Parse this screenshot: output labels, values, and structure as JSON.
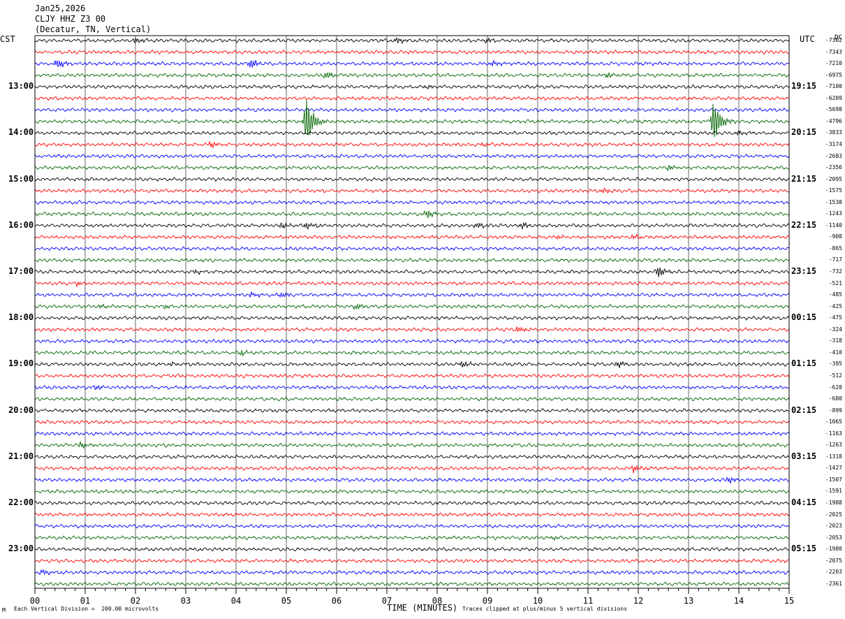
{
  "header": {
    "date": "Jan25,2026",
    "channel": "CLJY HHZ Z3 00",
    "location": "(Decatur, TN, Vertical)"
  },
  "left_zone": "CST",
  "right_zone": "UTC",
  "dc_header": "DC",
  "left_hour_labels": [
    "13:00",
    "14:00",
    "15:00",
    "16:00",
    "17:00",
    "18:00",
    "19:00",
    "20:00",
    "21:00",
    "22:00",
    "23:00"
  ],
  "right_hour_labels": [
    "19:15",
    "20:15",
    "21:15",
    "22:15",
    "23:15",
    "00:15",
    "01:15",
    "02:15",
    "03:15",
    "04:15",
    "05:15"
  ],
  "dc_offsets": [
    "-7302",
    "-7343",
    "-7210",
    "-6975",
    "-7100",
    "-6209",
    "-5698",
    "-4796",
    "-3833",
    "-3174",
    "-2683",
    "-2356",
    "-2095",
    "-1575",
    "-1538",
    "-1243",
    "-1140",
    "-908",
    "-865",
    "-717",
    "-732",
    "-521",
    "-485",
    "-425",
    "-475",
    "-324",
    "-318",
    "-410",
    "-395",
    "-512",
    "-628",
    "-680",
    "-899",
    "-1065",
    "-1163",
    "-1263",
    "-1318",
    "-1427",
    "-1507",
    "-1591",
    "-1988",
    "-2025",
    "-2023",
    "-2053",
    "-1980",
    "-2075",
    "-2203",
    "-2361"
  ],
  "footer": {
    "scale_note": "Each Vertical Division =  200.00 microvolts",
    "clip_note": "Traces clipped at plus/minus 5 vertical divisions",
    "corner_mark": "M"
  },
  "chart_data": {
    "type": "line",
    "title": "CLJY HHZ Z3 00",
    "xlabel": "TIME (MINUTES)",
    "x_ticks": [
      "00",
      "01",
      "02",
      "03",
      "04",
      "05",
      "06",
      "07",
      "08",
      "09",
      "10",
      "11",
      "12",
      "13",
      "14",
      "15"
    ],
    "xlim": [
      0,
      15
    ],
    "traces_per_hour": 4,
    "trace_count": 48,
    "trace_colors": [
      "#000000",
      "#ff0000",
      "#0000ff",
      "#006400"
    ],
    "grid": true,
    "events": [
      {
        "trace": 0,
        "minute": 2.0,
        "amplitude": 0.5
      },
      {
        "trace": 0,
        "minute": 7.2,
        "amplitude": 0.5
      },
      {
        "trace": 0,
        "minute": 9.0,
        "amplitude": 0.4
      },
      {
        "trace": 2,
        "minute": 0.45,
        "amplitude": 0.8
      },
      {
        "trace": 2,
        "minute": 4.3,
        "amplitude": 0.8
      },
      {
        "trace": 2,
        "minute": 9.1,
        "amplitude": 0.4
      },
      {
        "trace": 3,
        "minute": 5.8,
        "amplitude": 0.6
      },
      {
        "trace": 3,
        "minute": 11.4,
        "amplitude": 0.4
      },
      {
        "trace": 4,
        "minute": 7.8,
        "amplitude": 0.3
      },
      {
        "trace": 7,
        "minute": 5.4,
        "amplitude": 4.0
      },
      {
        "trace": 7,
        "minute": 13.5,
        "amplitude": 3.8
      },
      {
        "trace": 8,
        "minute": 14.0,
        "amplitude": 0.4
      },
      {
        "trace": 9,
        "minute": 3.5,
        "amplitude": 0.5
      },
      {
        "trace": 9,
        "minute": 8.9,
        "amplitude": 0.3
      },
      {
        "trace": 11,
        "minute": 12.6,
        "amplitude": 0.5
      },
      {
        "trace": 13,
        "minute": 11.3,
        "amplitude": 0.4
      },
      {
        "trace": 15,
        "minute": 7.8,
        "amplitude": 0.7
      },
      {
        "trace": 16,
        "minute": 4.9,
        "amplitude": 0.5
      },
      {
        "trace": 16,
        "minute": 5.4,
        "amplitude": 0.6
      },
      {
        "trace": 16,
        "minute": 8.8,
        "amplitude": 0.5
      },
      {
        "trace": 16,
        "minute": 9.7,
        "amplitude": 0.5
      },
      {
        "trace": 17,
        "minute": 10.4,
        "amplitude": 0.3
      },
      {
        "trace": 17,
        "minute": 11.9,
        "amplitude": 0.3
      },
      {
        "trace": 20,
        "minute": 3.2,
        "amplitude": 0.3
      },
      {
        "trace": 20,
        "minute": 12.4,
        "amplitude": 1.0
      },
      {
        "trace": 21,
        "minute": 0.85,
        "amplitude": 0.4
      },
      {
        "trace": 22,
        "minute": 4.3,
        "amplitude": 0.4
      },
      {
        "trace": 22,
        "minute": 4.9,
        "amplitude": 0.5
      },
      {
        "trace": 23,
        "minute": 1.3,
        "amplitude": 0.4
      },
      {
        "trace": 23,
        "minute": 2.6,
        "amplitude": 0.3
      },
      {
        "trace": 23,
        "minute": 6.4,
        "amplitude": 0.5
      },
      {
        "trace": 25,
        "minute": 9.6,
        "amplitude": 0.5
      },
      {
        "trace": 27,
        "minute": 4.1,
        "amplitude": 0.4
      },
      {
        "trace": 28,
        "minute": 2.7,
        "amplitude": 0.3
      },
      {
        "trace": 28,
        "minute": 8.5,
        "amplitude": 0.6
      },
      {
        "trace": 28,
        "minute": 11.6,
        "amplitude": 0.5
      },
      {
        "trace": 30,
        "minute": 1.2,
        "amplitude": 0.4
      },
      {
        "trace": 35,
        "minute": 0.9,
        "amplitude": 0.5
      },
      {
        "trace": 37,
        "minute": 11.9,
        "amplitude": 0.6
      },
      {
        "trace": 38,
        "minute": 13.8,
        "amplitude": 0.5
      },
      {
        "trace": 43,
        "minute": 10.3,
        "amplitude": 0.3
      },
      {
        "trace": 46,
        "minute": 0.15,
        "amplitude": 0.4
      }
    ]
  }
}
